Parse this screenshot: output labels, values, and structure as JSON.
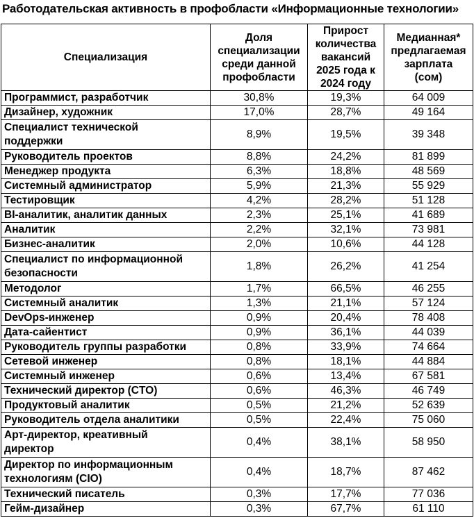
{
  "title": "Работодательская активность в профобласти «Информационные технологии»",
  "table": {
    "headers": [
      {
        "label": "Специализация"
      },
      {
        "label": "Доля\nспециализации\nсреди данной\nпрофобласти"
      },
      {
        "label": "Прирост\nколичества\nвакансий\n2025 года к\n2024 году"
      },
      {
        "label": "Медианная*\nпредлагаемая\nзарплата\n(сом)"
      }
    ],
    "rows": [
      [
        "Программист, разработчик",
        "30,8%",
        "19,3%",
        "64 009"
      ],
      [
        "Дизайнер, художник",
        "17,0%",
        "28,7%",
        "49 164"
      ],
      [
        "Специалист технической\nподдержки",
        "8,9%",
        "19,5%",
        "39 348"
      ],
      [
        "Руководитель проектов",
        "8,8%",
        "24,2%",
        "81 899"
      ],
      [
        "Менеджер продукта",
        "6,3%",
        "18,8%",
        "48 569"
      ],
      [
        "Системный администратор",
        "5,9%",
        "21,3%",
        "55 929"
      ],
      [
        "Тестировщик",
        "4,2%",
        "28,2%",
        "51 128"
      ],
      [
        "BI-аналитик, аналитик данных",
        "2,3%",
        "25,1%",
        "41 689"
      ],
      [
        "Аналитик",
        "2,2%",
        "32,1%",
        "73 981"
      ],
      [
        "Бизнес-аналитик",
        "2,0%",
        "10,6%",
        "44 128"
      ],
      [
        "Специалист по информационной\nбезопасности",
        "1,8%",
        "26,2%",
        "41 254"
      ],
      [
        "Методолог",
        "1,7%",
        "66,5%",
        "46 255"
      ],
      [
        "Системный аналитик",
        "1,3%",
        "21,1%",
        "57 124"
      ],
      [
        "DevOps-инженер",
        "0,9%",
        "20,4%",
        "78 408"
      ],
      [
        "Дата-сайентист",
        "0,9%",
        "36,1%",
        "44 039"
      ],
      [
        "Руководитель группы разработки",
        "0,8%",
        "33,9%",
        "74 664"
      ],
      [
        "Сетевой инженер",
        "0,8%",
        "18,1%",
        "44 884"
      ],
      [
        "Системный инженер",
        "0,6%",
        "13,4%",
        "67 581"
      ],
      [
        "Технический директор (CTO)",
        "0,6%",
        "46,3%",
        "46 749"
      ],
      [
        "Продуктовый аналитик",
        "0,5%",
        "21,2%",
        "52 639"
      ],
      [
        "Руководитель отдела аналитики",
        "0,5%",
        "22,4%",
        "75 060"
      ],
      [
        "Арт-директор, креативный\nдиректор",
        "0,4%",
        "38,1%",
        "58 950"
      ],
      [
        "Директор по информационным\nтехнологиям (CIO)",
        "0,4%",
        "18,7%",
        "87 462"
      ],
      [
        "Технический писатель",
        "0,3%",
        "17,7%",
        "77 036"
      ],
      [
        "Гейм-дизайнер",
        "0,3%",
        "67,7%",
        "61 110"
      ]
    ]
  }
}
